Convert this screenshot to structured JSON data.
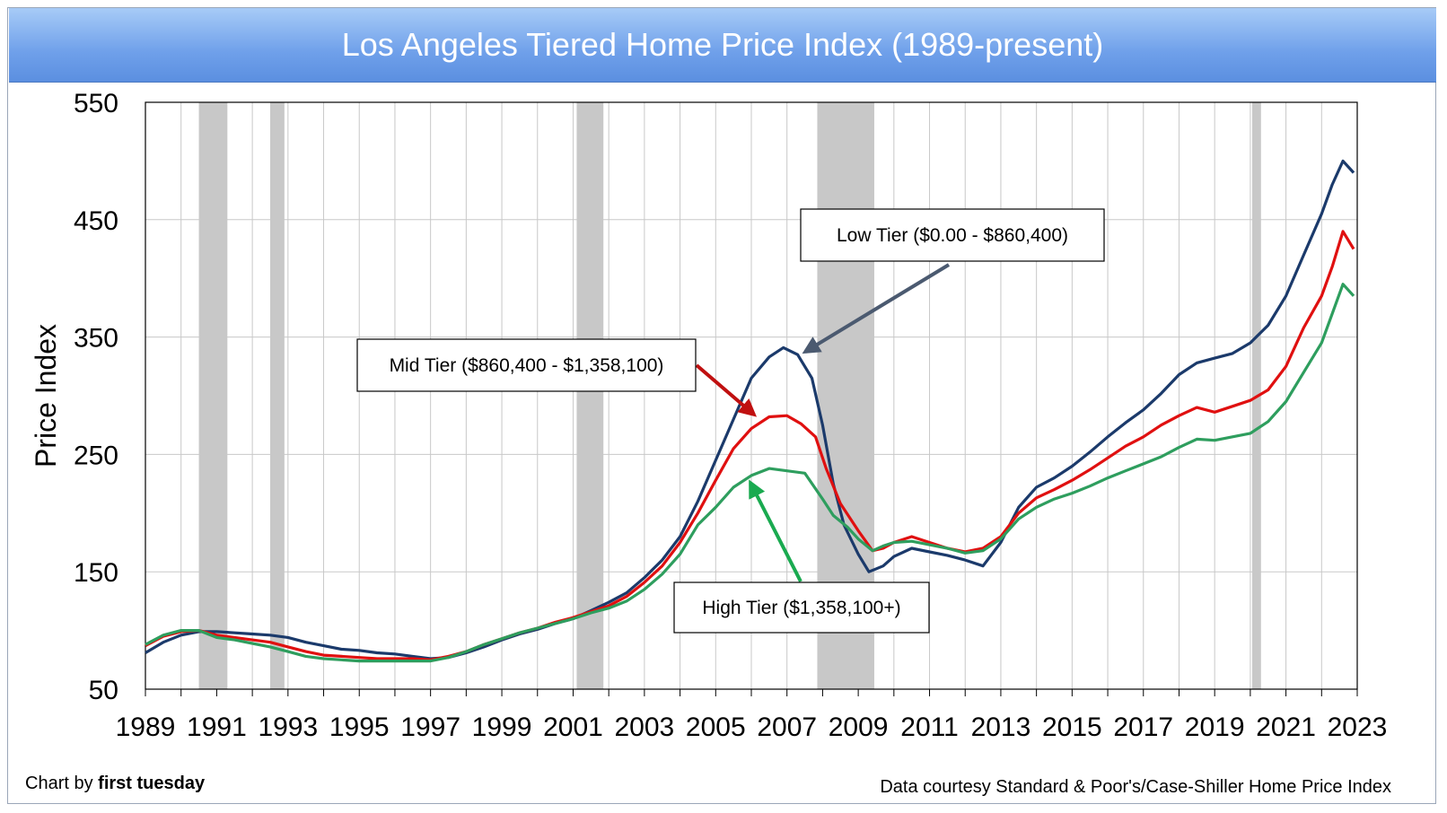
{
  "colors": {
    "low": "#1b3a6b",
    "mid": "#e01010",
    "high": "#2e9e5e",
    "recession": "#c8c8c8",
    "grid": "#c8c8c8",
    "title_bg": "#6fa0ea"
  },
  "credits": {
    "chart_by_prefix": "Chart by ",
    "chart_by_name": "first tuesday",
    "data_source": "Data courtesy Standard & Poor's/Case-Shiller Home Price Index"
  },
  "chart_data": {
    "type": "line",
    "title": "Los Angeles Tiered Home Price Index (1989-present)",
    "ylabel": "Price Index",
    "xlabel": "",
    "xlim": [
      1989,
      2023
    ],
    "ylim": [
      50,
      550
    ],
    "x_ticks": [
      "1989",
      "1991",
      "1993",
      "1995",
      "1997",
      "1999",
      "2001",
      "2003",
      "2005",
      "2007",
      "2009",
      "2011",
      "2013",
      "2015",
      "2017",
      "2019",
      "2021",
      "2023"
    ],
    "y_ticks": [
      50,
      150,
      250,
      350,
      450,
      550
    ],
    "grid": true,
    "recessions": [
      [
        1990.5,
        1991.3
      ],
      [
        1992.5,
        1992.9
      ],
      [
        2001.1,
        2001.85
      ],
      [
        2007.85,
        2009.45
      ],
      [
        2020.05,
        2020.3
      ]
    ],
    "series": [
      {
        "name": "Low Tier ($0.00 - $860,400)",
        "key": "low",
        "points": [
          [
            1989.0,
            81
          ],
          [
            1989.5,
            90
          ],
          [
            1990.0,
            96
          ],
          [
            1990.5,
            99
          ],
          [
            1991.0,
            99
          ],
          [
            1991.5,
            98
          ],
          [
            1992.0,
            97
          ],
          [
            1992.5,
            96
          ],
          [
            1993.0,
            94
          ],
          [
            1993.5,
            90
          ],
          [
            1994.0,
            87
          ],
          [
            1994.5,
            84
          ],
          [
            1995.0,
            83
          ],
          [
            1995.5,
            81
          ],
          [
            1996.0,
            80
          ],
          [
            1996.5,
            78
          ],
          [
            1997.0,
            76
          ],
          [
            1997.5,
            77
          ],
          [
            1998.0,
            81
          ],
          [
            1998.5,
            86
          ],
          [
            1999.0,
            92
          ],
          [
            1999.5,
            97
          ],
          [
            2000.0,
            101
          ],
          [
            2000.5,
            106
          ],
          [
            2001.0,
            110
          ],
          [
            2001.5,
            117
          ],
          [
            2002.0,
            124
          ],
          [
            2002.5,
            132
          ],
          [
            2003.0,
            145
          ],
          [
            2003.5,
            160
          ],
          [
            2004.0,
            180
          ],
          [
            2004.5,
            210
          ],
          [
            2005.0,
            245
          ],
          [
            2005.5,
            280
          ],
          [
            2006.0,
            315
          ],
          [
            2006.5,
            333
          ],
          [
            2006.9,
            341
          ],
          [
            2007.3,
            335
          ],
          [
            2007.7,
            315
          ],
          [
            2008.0,
            275
          ],
          [
            2008.3,
            225
          ],
          [
            2008.6,
            190
          ],
          [
            2009.0,
            165
          ],
          [
            2009.3,
            150
          ],
          [
            2009.7,
            155
          ],
          [
            2010.0,
            163
          ],
          [
            2010.5,
            170
          ],
          [
            2011.0,
            167
          ],
          [
            2011.5,
            164
          ],
          [
            2012.0,
            160
          ],
          [
            2012.5,
            155
          ],
          [
            2013.0,
            175
          ],
          [
            2013.5,
            205
          ],
          [
            2014.0,
            222
          ],
          [
            2014.5,
            230
          ],
          [
            2015.0,
            240
          ],
          [
            2015.5,
            252
          ],
          [
            2016.0,
            265
          ],
          [
            2016.5,
            277
          ],
          [
            2017.0,
            288
          ],
          [
            2017.5,
            302
          ],
          [
            2018.0,
            318
          ],
          [
            2018.5,
            328
          ],
          [
            2019.0,
            332
          ],
          [
            2019.5,
            336
          ],
          [
            2020.0,
            345
          ],
          [
            2020.5,
            360
          ],
          [
            2021.0,
            385
          ],
          [
            2021.5,
            420
          ],
          [
            2022.0,
            455
          ],
          [
            2022.3,
            480
          ],
          [
            2022.6,
            500
          ],
          [
            2022.9,
            490
          ]
        ]
      },
      {
        "name": "Mid Tier ($860,400 - $1,358,100)",
        "key": "mid",
        "points": [
          [
            1989.0,
            87
          ],
          [
            1989.5,
            95
          ],
          [
            1990.0,
            99
          ],
          [
            1990.5,
            100
          ],
          [
            1991.0,
            96
          ],
          [
            1991.5,
            94
          ],
          [
            1992.0,
            92
          ],
          [
            1992.5,
            90
          ],
          [
            1993.0,
            86
          ],
          [
            1993.5,
            82
          ],
          [
            1994.0,
            79
          ],
          [
            1994.5,
            78
          ],
          [
            1995.0,
            77
          ],
          [
            1995.5,
            76
          ],
          [
            1996.0,
            76
          ],
          [
            1996.5,
            76
          ],
          [
            1997.0,
            75
          ],
          [
            1997.5,
            78
          ],
          [
            1998.0,
            82
          ],
          [
            1998.5,
            88
          ],
          [
            1999.0,
            93
          ],
          [
            1999.5,
            98
          ],
          [
            2000.0,
            102
          ],
          [
            2000.5,
            107
          ],
          [
            2001.0,
            111
          ],
          [
            2001.5,
            116
          ],
          [
            2002.0,
            121
          ],
          [
            2002.5,
            129
          ],
          [
            2003.0,
            141
          ],
          [
            2003.5,
            155
          ],
          [
            2004.0,
            175
          ],
          [
            2004.5,
            200
          ],
          [
            2005.0,
            228
          ],
          [
            2005.5,
            255
          ],
          [
            2006.0,
            272
          ],
          [
            2006.5,
            282
          ],
          [
            2007.0,
            283
          ],
          [
            2007.4,
            276
          ],
          [
            2007.8,
            265
          ],
          [
            2008.1,
            238
          ],
          [
            2008.5,
            208
          ],
          [
            2009.0,
            185
          ],
          [
            2009.4,
            168
          ],
          [
            2009.7,
            170
          ],
          [
            2010.0,
            175
          ],
          [
            2010.5,
            180
          ],
          [
            2011.0,
            175
          ],
          [
            2011.5,
            170
          ],
          [
            2012.0,
            167
          ],
          [
            2012.5,
            170
          ],
          [
            2013.0,
            180
          ],
          [
            2013.5,
            200
          ],
          [
            2014.0,
            213
          ],
          [
            2014.5,
            220
          ],
          [
            2015.0,
            228
          ],
          [
            2015.5,
            237
          ],
          [
            2016.0,
            247
          ],
          [
            2016.5,
            257
          ],
          [
            2017.0,
            265
          ],
          [
            2017.5,
            275
          ],
          [
            2018.0,
            283
          ],
          [
            2018.5,
            290
          ],
          [
            2019.0,
            286
          ],
          [
            2019.5,
            291
          ],
          [
            2020.0,
            296
          ],
          [
            2020.5,
            305
          ],
          [
            2021.0,
            325
          ],
          [
            2021.5,
            358
          ],
          [
            2022.0,
            385
          ],
          [
            2022.3,
            410
          ],
          [
            2022.6,
            440
          ],
          [
            2022.9,
            425
          ]
        ]
      },
      {
        "name": "High Tier ($1,358,100+)",
        "key": "high",
        "points": [
          [
            1989.0,
            88
          ],
          [
            1989.5,
            96
          ],
          [
            1990.0,
            100
          ],
          [
            1990.5,
            100
          ],
          [
            1991.0,
            94
          ],
          [
            1991.5,
            92
          ],
          [
            1992.0,
            89
          ],
          [
            1992.5,
            86
          ],
          [
            1993.0,
            82
          ],
          [
            1993.5,
            78
          ],
          [
            1994.0,
            76
          ],
          [
            1994.5,
            75
          ],
          [
            1995.0,
            74
          ],
          [
            1995.5,
            74
          ],
          [
            1996.0,
            74
          ],
          [
            1996.5,
            74
          ],
          [
            1997.0,
            74
          ],
          [
            1997.5,
            77
          ],
          [
            1998.0,
            82
          ],
          [
            1998.5,
            88
          ],
          [
            1999.0,
            93
          ],
          [
            1999.5,
            98
          ],
          [
            2000.0,
            102
          ],
          [
            2000.5,
            106
          ],
          [
            2001.0,
            110
          ],
          [
            2001.5,
            115
          ],
          [
            2002.0,
            119
          ],
          [
            2002.5,
            125
          ],
          [
            2003.0,
            135
          ],
          [
            2003.5,
            148
          ],
          [
            2004.0,
            165
          ],
          [
            2004.5,
            190
          ],
          [
            2005.0,
            205
          ],
          [
            2005.5,
            222
          ],
          [
            2006.0,
            232
          ],
          [
            2006.5,
            238
          ],
          [
            2007.0,
            236
          ],
          [
            2007.5,
            234
          ],
          [
            2008.0,
            212
          ],
          [
            2008.3,
            198
          ],
          [
            2008.7,
            188
          ],
          [
            2009.0,
            178
          ],
          [
            2009.4,
            168
          ],
          [
            2009.7,
            172
          ],
          [
            2010.0,
            175
          ],
          [
            2010.5,
            176
          ],
          [
            2011.0,
            173
          ],
          [
            2011.5,
            170
          ],
          [
            2012.0,
            166
          ],
          [
            2012.5,
            168
          ],
          [
            2013.0,
            178
          ],
          [
            2013.5,
            195
          ],
          [
            2014.0,
            205
          ],
          [
            2014.5,
            212
          ],
          [
            2015.0,
            217
          ],
          [
            2015.5,
            223
          ],
          [
            2016.0,
            230
          ],
          [
            2016.5,
            236
          ],
          [
            2017.0,
            242
          ],
          [
            2017.5,
            248
          ],
          [
            2018.0,
            256
          ],
          [
            2018.5,
            263
          ],
          [
            2019.0,
            262
          ],
          [
            2019.5,
            265
          ],
          [
            2020.0,
            268
          ],
          [
            2020.5,
            278
          ],
          [
            2021.0,
            295
          ],
          [
            2021.5,
            320
          ],
          [
            2022.0,
            345
          ],
          [
            2022.3,
            370
          ],
          [
            2022.6,
            395
          ],
          [
            2022.9,
            385
          ]
        ]
      }
    ],
    "annotations": [
      {
        "label": "Low Tier ($0.00 - $860,400)",
        "series": "low"
      },
      {
        "label": "Mid Tier ($860,400 - $1,358,100)",
        "series": "mid"
      },
      {
        "label": "High Tier ($1,358,100+)",
        "series": "high"
      }
    ]
  }
}
